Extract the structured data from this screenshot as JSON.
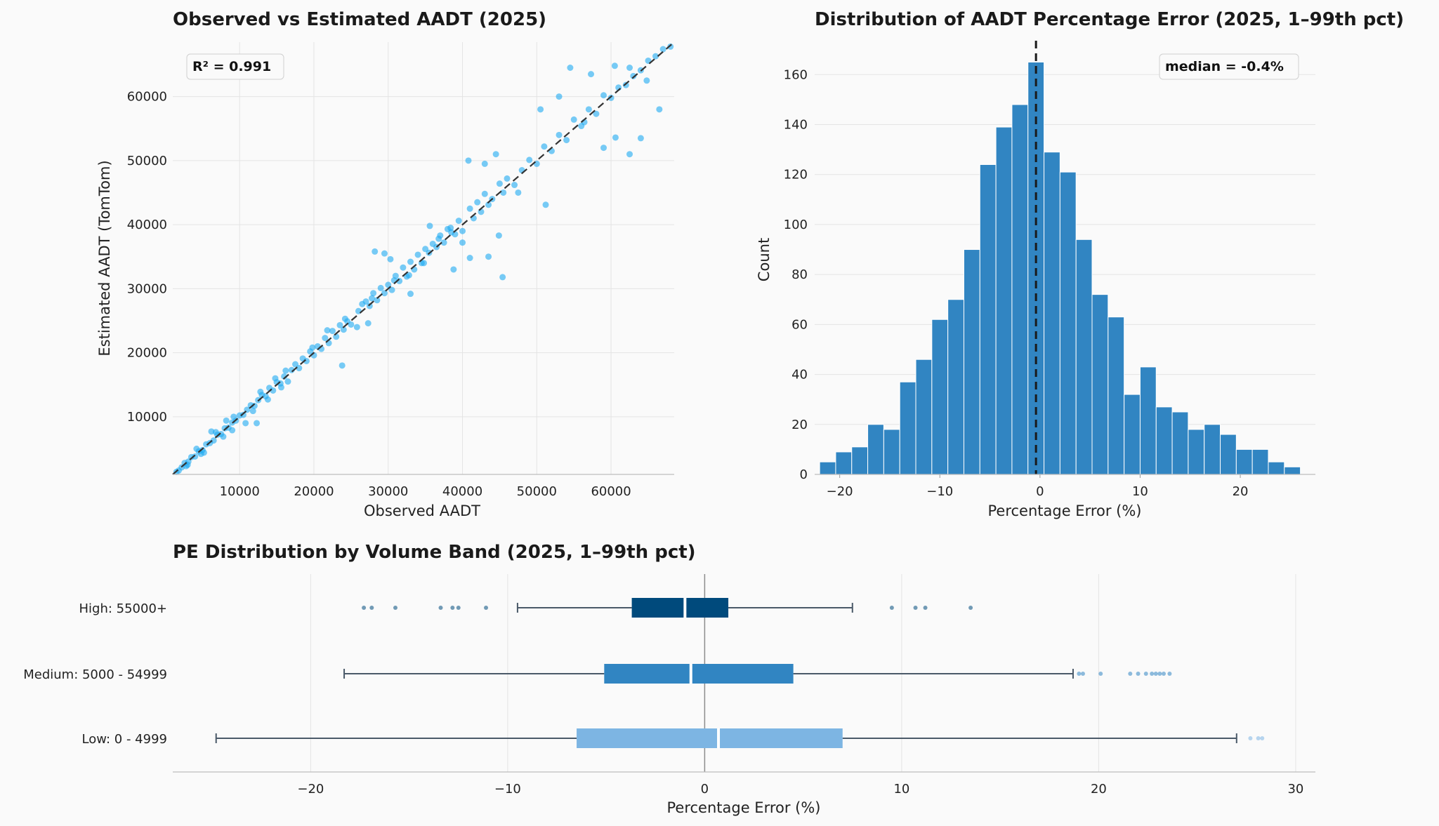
{
  "chart_data": [
    {
      "type": "scatter",
      "title": "Observed vs Estimated AADT (2025)",
      "xlabel": "Observed AADT",
      "ylabel": "Estimated AADT (TomTom)",
      "xlim": [
        1000,
        68500
      ],
      "ylim": [
        1000,
        68500
      ],
      "xticks": [
        10000,
        20000,
        30000,
        40000,
        50000,
        60000
      ],
      "yticks": [
        10000,
        20000,
        30000,
        40000,
        50000,
        60000
      ],
      "annotation": "R² = 0.991",
      "annotation_position": "top-left",
      "reference_line": "y = x (dashed)",
      "point_color": "#1eaaf1",
      "grid": true,
      "points": [
        [
          1500,
          1400
        ],
        [
          2200,
          2100
        ],
        [
          2600,
          2800
        ],
        [
          3100,
          3000
        ],
        [
          3500,
          3700
        ],
        [
          4000,
          3800
        ],
        [
          4500,
          4600
        ],
        [
          5000,
          4800
        ],
        [
          5500,
          5700
        ],
        [
          6000,
          5900
        ],
        [
          6500,
          6300
        ],
        [
          7000,
          7200
        ],
        [
          7500,
          7300
        ],
        [
          8000,
          8200
        ],
        [
          8500,
          8300
        ],
        [
          9000,
          9100
        ],
        [
          9500,
          9400
        ],
        [
          10000,
          10200
        ],
        [
          10500,
          10300
        ],
        [
          11000,
          11100
        ],
        [
          11500,
          11800
        ],
        [
          12000,
          11700
        ],
        [
          12500,
          12600
        ],
        [
          13000,
          13400
        ],
        [
          13500,
          13200
        ],
        [
          14000,
          14500
        ],
        [
          14500,
          14100
        ],
        [
          15000,
          15400
        ],
        [
          15500,
          15200
        ],
        [
          16000,
          16300
        ],
        [
          3000,
          2500
        ],
        [
          4200,
          5000
        ],
        [
          5200,
          4400
        ],
        [
          6800,
          7600
        ],
        [
          7800,
          6900
        ],
        [
          9200,
          10000
        ],
        [
          11800,
          10900
        ],
        [
          12800,
          13900
        ],
        [
          13800,
          12700
        ],
        [
          14800,
          16000
        ],
        [
          16500,
          15500
        ],
        [
          17000,
          17300
        ],
        [
          17500,
          18200
        ],
        [
          18000,
          17600
        ],
        [
          18500,
          19100
        ],
        [
          19000,
          18700
        ],
        [
          19500,
          20200
        ],
        [
          20000,
          19600
        ],
        [
          20500,
          21000
        ],
        [
          21000,
          20600
        ],
        [
          21500,
          22300
        ],
        [
          22000,
          21500
        ],
        [
          22500,
          23400
        ],
        [
          23000,
          22500
        ],
        [
          23500,
          24300
        ],
        [
          24000,
          23600
        ],
        [
          24500,
          24900
        ],
        [
          25000,
          24400
        ],
        [
          26000,
          26500
        ],
        [
          26500,
          27600
        ],
        [
          27000,
          28000
        ],
        [
          27500,
          27300
        ],
        [
          28000,
          29300
        ],
        [
          28500,
          28200
        ],
        [
          29000,
          30100
        ],
        [
          29500,
          29300
        ],
        [
          30000,
          30600
        ],
        [
          30500,
          29800
        ],
        [
          31000,
          32000
        ],
        [
          31500,
          31200
        ],
        [
          32000,
          33300
        ],
        [
          32500,
          31900
        ],
        [
          33000,
          34200
        ],
        [
          33500,
          33000
        ],
        [
          34000,
          35300
        ],
        [
          34500,
          34000
        ],
        [
          35000,
          36200
        ],
        [
          35500,
          35600
        ],
        [
          36000,
          37000
        ],
        [
          36500,
          36500
        ],
        [
          37000,
          38300
        ],
        [
          37500,
          37200
        ],
        [
          38000,
          39300
        ],
        [
          38500,
          38800
        ],
        [
          39000,
          38500
        ],
        [
          39500,
          40600
        ],
        [
          40000,
          39000
        ],
        [
          41000,
          42500
        ],
        [
          41500,
          41000
        ],
        [
          42000,
          43500
        ],
        [
          42500,
          42000
        ],
        [
          43000,
          44800
        ],
        [
          43500,
          43100
        ],
        [
          44000,
          44000
        ],
        [
          45000,
          46400
        ],
        [
          45500,
          45000
        ],
        [
          46000,
          47200
        ],
        [
          47000,
          46200
        ],
        [
          48000,
          48500
        ],
        [
          49000,
          50100
        ],
        [
          50000,
          49500
        ],
        [
          51000,
          52200
        ],
        [
          52000,
          51500
        ],
        [
          53000,
          54000
        ],
        [
          54000,
          53200
        ],
        [
          55000,
          56400
        ],
        [
          56000,
          55400
        ],
        [
          57000,
          58000
        ],
        [
          58000,
          57300
        ],
        [
          59000,
          60200
        ],
        [
          60000,
          59800
        ],
        [
          61000,
          61400
        ],
        [
          62000,
          61800
        ],
        [
          63000,
          63200
        ],
        [
          64000,
          64100
        ],
        [
          65000,
          65600
        ],
        [
          66000,
          66300
        ],
        [
          67000,
          67400
        ],
        [
          68000,
          67800
        ],
        [
          62500,
          64500
        ],
        [
          43000,
          49500
        ],
        [
          44500,
          51000
        ],
        [
          40800,
          50000
        ],
        [
          50500,
          58000
        ],
        [
          53000,
          60000
        ],
        [
          54500,
          64500
        ],
        [
          57300,
          63500
        ],
        [
          60500,
          64800
        ],
        [
          45400,
          31800
        ],
        [
          41000,
          34800
        ],
        [
          38800,
          33000
        ],
        [
          40000,
          37200
        ],
        [
          33000,
          29200
        ],
        [
          27300,
          24600
        ],
        [
          23800,
          18000
        ],
        [
          43500,
          35000
        ],
        [
          47500,
          45000
        ],
        [
          51200,
          43100
        ],
        [
          59000,
          52000
        ],
        [
          64000,
          53500
        ],
        [
          62500,
          51000
        ],
        [
          66500,
          58000
        ],
        [
          64800,
          62500
        ],
        [
          29500,
          35500
        ],
        [
          30300,
          34600
        ],
        [
          28200,
          35800
        ],
        [
          35600,
          39800
        ],
        [
          44900,
          38300
        ],
        [
          56400,
          56000
        ],
        [
          60600,
          53600
        ],
        [
          9000,
          7900
        ],
        [
          10800,
          9000
        ],
        [
          12300,
          9000
        ],
        [
          15600,
          14600
        ],
        [
          8200,
          9400
        ],
        [
          6200,
          7700
        ],
        [
          4800,
          4200
        ],
        [
          2800,
          2300
        ],
        [
          1800,
          1600
        ],
        [
          16200,
          17200
        ],
        [
          19800,
          20800
        ],
        [
          21800,
          23500
        ],
        [
          24200,
          25300
        ],
        [
          25800,
          24000
        ],
        [
          27800,
          28500
        ],
        [
          30800,
          31300
        ],
        [
          32800,
          32100
        ],
        [
          34800,
          34000
        ],
        [
          36800,
          37800
        ],
        [
          38400,
          39500
        ]
      ]
    },
    {
      "type": "bar",
      "subtype": "histogram",
      "title": "Distribution of AADT Percentage Error (2025, 1–99th pct)",
      "xlabel": "Percentage Error (%)",
      "ylabel": "Count",
      "xlim": [
        -22.5,
        27.5
      ],
      "ylim": [
        0,
        173
      ],
      "xticks": [
        -20,
        -10,
        0,
        10,
        20
      ],
      "yticks": [
        0,
        20,
        40,
        60,
        80,
        100,
        120,
        140,
        160
      ],
      "bin_start": -22.0,
      "bin_width": 1.6,
      "values": [
        5,
        9,
        11,
        20,
        18,
        37,
        46,
        62,
        70,
        90,
        124,
        139,
        148,
        165,
        129,
        121,
        94,
        72,
        63,
        32,
        43,
        27,
        25,
        18,
        20,
        16,
        10,
        10,
        5,
        3
      ],
      "bar_color": "#3185c2",
      "median_line": -0.4,
      "annotation": "median = -0.4%",
      "annotation_position": "top-right",
      "grid": true
    },
    {
      "type": "box",
      "title": "PE Distribution by Volume Band (2025, 1–99th pct)",
      "xlabel": "Percentage Error (%)",
      "xlim": [
        -27,
        31
      ],
      "xticks": [
        -20,
        -10,
        0,
        10,
        20,
        30
      ],
      "zero_line": 0,
      "grid": true,
      "series": [
        {
          "name": "High: 55000+",
          "color": "#004a7c",
          "whisker_low": -9.5,
          "q1": -3.7,
          "median": -1.0,
          "q3": 1.2,
          "whisker_high": 7.5,
          "outliers": [
            -17.3,
            -16.9,
            -15.7,
            -13.4,
            -12.8,
            -12.5,
            -11.1,
            9.5,
            10.7,
            11.2,
            13.5
          ]
        },
        {
          "name": "Medium: 5000 - 54999",
          "color": "#3185c2",
          "whisker_low": -18.3,
          "q1": -5.1,
          "median": -0.7,
          "q3": 4.5,
          "whisker_high": 18.7,
          "outliers": [
            19.0,
            19.2,
            20.1,
            21.6,
            22.0,
            22.4,
            22.7,
            22.9,
            23.1,
            23.3,
            23.6
          ]
        },
        {
          "name": "Low: 0 - 4999",
          "color": "#7db5e3",
          "whisker_low": -24.8,
          "q1": -6.5,
          "median": 0.7,
          "q3": 7.0,
          "whisker_high": 27.0,
          "outliers": [
            27.7,
            28.1,
            28.3
          ]
        }
      ]
    }
  ]
}
